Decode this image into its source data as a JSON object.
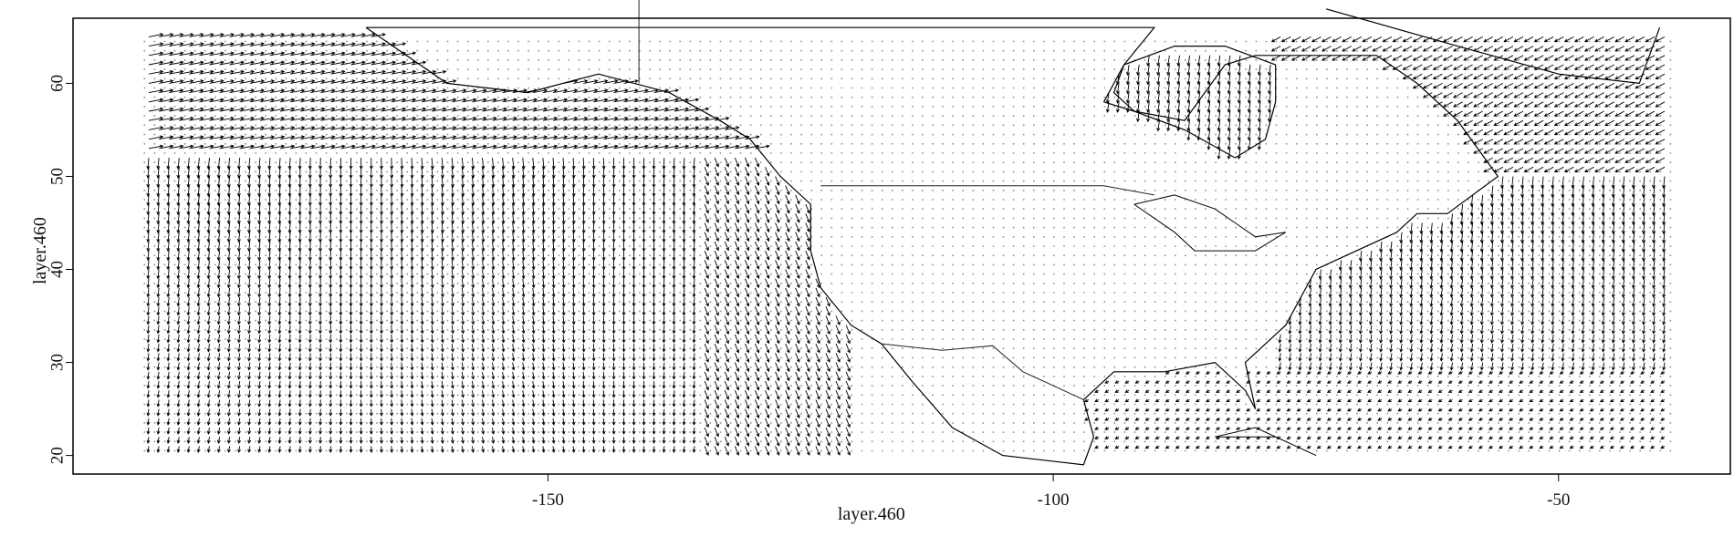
{
  "plot": {
    "xlabel": "layer.460",
    "ylabel": "layer.460",
    "x_ticks": [
      -150,
      -100,
      -50
    ],
    "y_ticks": [
      20,
      30,
      40,
      50,
      60
    ],
    "xlim": [
      -197,
      -33
    ],
    "ylim": [
      18,
      67
    ],
    "grid_extent": {
      "lon": [
        -190,
        -39
      ],
      "lat": [
        20.5,
        65
      ]
    },
    "colors": {
      "dots": "#8593a3",
      "arrows": "#000000",
      "coast": "#000000",
      "frame": "#000000"
    }
  },
  "chart_data": {
    "type": "quiver",
    "title": "",
    "xlabel": "layer.460",
    "ylabel": "layer.460",
    "xlim": [
      -197,
      -33
    ],
    "ylim": [
      18,
      67
    ],
    "x_ticks": [
      -150,
      -100,
      -50
    ],
    "y_ticks": [
      20,
      30,
      40,
      50,
      60
    ],
    "field_region": {
      "lon": [
        -190,
        -39
      ],
      "lat": [
        20.5,
        65
      ]
    },
    "land_mask_region": "North America (grid cells shown as dots, no vectors)",
    "ocean_flow": [
      {
        "region": "North Pacific west of 150W",
        "lat": [
          21,
          52
        ],
        "direction": "south",
        "strength": "strong"
      },
      {
        "region": "Gulf of Alaska",
        "lat": [
          52,
          60
        ],
        "direction": "east",
        "strength": "strong"
      },
      {
        "region": "California coast",
        "lat": [
          30,
          48
        ],
        "direction": "southeast",
        "strength": "moderate"
      },
      {
        "region": "North Atlantic",
        "lat": [
          22,
          50
        ],
        "direction": "south",
        "strength": "strong"
      },
      {
        "region": "Hudson Bay",
        "lat": [
          52,
          65
        ],
        "direction": "south",
        "strength": "moderate"
      }
    ]
  }
}
